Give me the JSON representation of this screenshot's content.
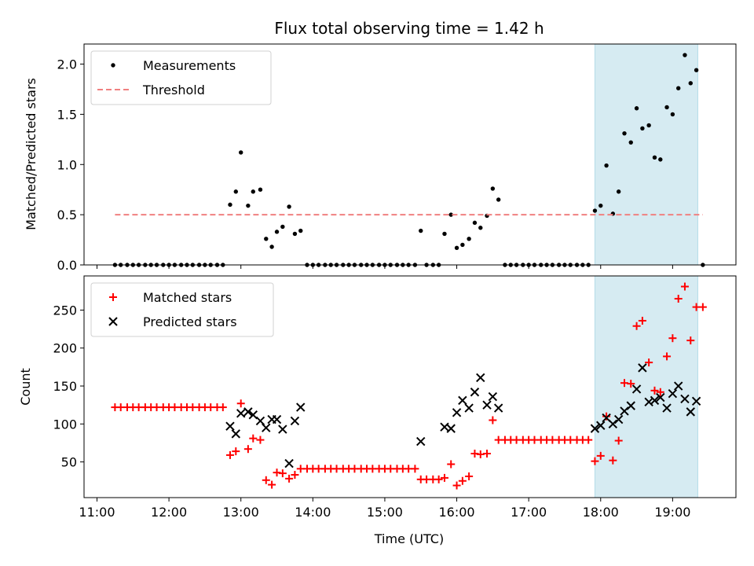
{
  "chart_data": [
    {
      "type": "scatter",
      "title": "Flux total observing time = 1.42 h",
      "xlabel": "",
      "ylabel": "Matched/Predicted stars",
      "xlim": [
        10.82,
        19.88
      ],
      "ylim": [
        0.0,
        2.2
      ],
      "yticks": [
        {
          "v": 0.0,
          "label": "0.0"
        },
        {
          "v": 0.5,
          "label": "0.5"
        },
        {
          "v": 1.0,
          "label": "1.0"
        },
        {
          "v": 1.5,
          "label": "1.5"
        },
        {
          "v": 2.0,
          "label": "2.0"
        }
      ],
      "xticks": [
        11,
        12,
        13,
        14,
        15,
        16,
        17,
        18,
        19
      ],
      "highlight_span": {
        "x0": 17.92,
        "x1": 19.35,
        "color": "#add8e6"
      },
      "legend": {
        "position": "upper-left",
        "entries": [
          "Measurements",
          "Threshold"
        ]
      },
      "series": [
        {
          "name": "Measurements",
          "marker": "dot",
          "color": "#000000",
          "points": [
            [
              11.25,
              0
            ],
            [
              11.33,
              0
            ],
            [
              11.42,
              0
            ],
            [
              11.5,
              0
            ],
            [
              11.58,
              0
            ],
            [
              11.67,
              0
            ],
            [
              11.75,
              0
            ],
            [
              11.83,
              0
            ],
            [
              11.92,
              0
            ],
            [
              12.0,
              0
            ],
            [
              12.08,
              0
            ],
            [
              12.17,
              0
            ],
            [
              12.25,
              0
            ],
            [
              12.33,
              0
            ],
            [
              12.42,
              0
            ],
            [
              12.5,
              0
            ],
            [
              12.58,
              0
            ],
            [
              12.67,
              0
            ],
            [
              12.75,
              0
            ],
            [
              12.85,
              0.6
            ],
            [
              12.93,
              0.73
            ],
            [
              13.0,
              1.12
            ],
            [
              13.1,
              0.59
            ],
            [
              13.17,
              0.73
            ],
            [
              13.27,
              0.75
            ],
            [
              13.35,
              0.26
            ],
            [
              13.43,
              0.18
            ],
            [
              13.5,
              0.33
            ],
            [
              13.58,
              0.38
            ],
            [
              13.67,
              0.58
            ],
            [
              13.75,
              0.31
            ],
            [
              13.83,
              0.34
            ],
            [
              13.92,
              0
            ],
            [
              14.0,
              0
            ],
            [
              14.08,
              0
            ],
            [
              14.17,
              0
            ],
            [
              14.25,
              0
            ],
            [
              14.33,
              0
            ],
            [
              14.42,
              0
            ],
            [
              14.5,
              0
            ],
            [
              14.58,
              0
            ],
            [
              14.67,
              0
            ],
            [
              14.75,
              0
            ],
            [
              14.83,
              0
            ],
            [
              14.92,
              0
            ],
            [
              15.0,
              0
            ],
            [
              15.08,
              0
            ],
            [
              15.17,
              0
            ],
            [
              15.25,
              0
            ],
            [
              15.33,
              0
            ],
            [
              15.42,
              0
            ],
            [
              15.5,
              0.34
            ],
            [
              15.58,
              0
            ],
            [
              15.67,
              0
            ],
            [
              15.75,
              0
            ],
            [
              15.83,
              0.31
            ],
            [
              15.92,
              0.5
            ],
            [
              16.0,
              0.17
            ],
            [
              16.08,
              0.2
            ],
            [
              16.17,
              0.26
            ],
            [
              16.25,
              0.42
            ],
            [
              16.33,
              0.37
            ],
            [
              16.42,
              0.49
            ],
            [
              16.5,
              0.76
            ],
            [
              16.58,
              0.65
            ],
            [
              16.67,
              0
            ],
            [
              16.75,
              0
            ],
            [
              16.83,
              0
            ],
            [
              16.92,
              0
            ],
            [
              17.0,
              0
            ],
            [
              17.08,
              0
            ],
            [
              17.17,
              0
            ],
            [
              17.25,
              0
            ],
            [
              17.33,
              0
            ],
            [
              17.42,
              0
            ],
            [
              17.5,
              0
            ],
            [
              17.58,
              0
            ],
            [
              17.67,
              0
            ],
            [
              17.75,
              0
            ],
            [
              17.83,
              0
            ],
            [
              17.92,
              0.54
            ],
            [
              18.0,
              0.59
            ],
            [
              18.08,
              0.99
            ],
            [
              18.17,
              0.51
            ],
            [
              18.25,
              0.73
            ],
            [
              18.33,
              1.31
            ],
            [
              18.42,
              1.22
            ],
            [
              18.5,
              1.56
            ],
            [
              18.58,
              1.36
            ],
            [
              18.67,
              1.39
            ],
            [
              18.75,
              1.07
            ],
            [
              18.83,
              1.05
            ],
            [
              18.92,
              1.57
            ],
            [
              19.0,
              1.5
            ],
            [
              19.08,
              1.76
            ],
            [
              19.17,
              2.09
            ],
            [
              19.25,
              1.81
            ],
            [
              19.33,
              1.94
            ],
            [
              19.42,
              0
            ]
          ]
        },
        {
          "name": "Threshold",
          "marker": "dashed-line",
          "color": "#f08080",
          "points": [
            [
              11.25,
              0.5
            ],
            [
              19.42,
              0.5
            ]
          ]
        }
      ]
    },
    {
      "type": "scatter",
      "title": "",
      "xlabel": "Time (UTC)",
      "ylabel": "Count",
      "xlim": [
        10.82,
        19.88
      ],
      "ylim": [
        3,
        295
      ],
      "yticks": [
        {
          "v": 50,
          "label": "50"
        },
        {
          "v": 100,
          "label": "100"
        },
        {
          "v": 150,
          "label": "150"
        },
        {
          "v": 200,
          "label": "200"
        },
        {
          "v": 250,
          "label": "250"
        }
      ],
      "xticks": [
        {
          "v": 11,
          "label": "11:00"
        },
        {
          "v": 12,
          "label": "12:00"
        },
        {
          "v": 13,
          "label": "13:00"
        },
        {
          "v": 14,
          "label": "14:00"
        },
        {
          "v": 15,
          "label": "15:00"
        },
        {
          "v": 16,
          "label": "16:00"
        },
        {
          "v": 17,
          "label": "17:00"
        },
        {
          "v": 18,
          "label": "18:00"
        },
        {
          "v": 19,
          "label": "19:00"
        }
      ],
      "highlight_span": {
        "x0": 17.92,
        "x1": 19.35,
        "color": "#add8e6"
      },
      "legend": {
        "position": "upper-left",
        "entries": [
          "Matched stars",
          "Predicted stars"
        ]
      },
      "series": [
        {
          "name": "Matched stars",
          "marker": "plus",
          "color": "#ff0000",
          "points": [
            [
              11.25,
              122
            ],
            [
              11.33,
              122
            ],
            [
              11.42,
              122
            ],
            [
              11.5,
              122
            ],
            [
              11.58,
              122
            ],
            [
              11.67,
              122
            ],
            [
              11.75,
              122
            ],
            [
              11.83,
              122
            ],
            [
              11.92,
              122
            ],
            [
              12.0,
              122
            ],
            [
              12.08,
              122
            ],
            [
              12.17,
              122
            ],
            [
              12.25,
              122
            ],
            [
              12.33,
              122
            ],
            [
              12.42,
              122
            ],
            [
              12.5,
              122
            ],
            [
              12.58,
              122
            ],
            [
              12.67,
              122
            ],
            [
              12.75,
              122
            ],
            [
              12.85,
              59
            ],
            [
              12.93,
              64
            ],
            [
              13.0,
              127
            ],
            [
              13.1,
              67
            ],
            [
              13.17,
              81
            ],
            [
              13.27,
              79
            ],
            [
              13.35,
              26
            ],
            [
              13.43,
              20
            ],
            [
              13.5,
              36
            ],
            [
              13.58,
              35
            ],
            [
              13.67,
              28
            ],
            [
              13.75,
              33
            ],
            [
              13.83,
              41
            ],
            [
              13.92,
              41
            ],
            [
              14.0,
              41
            ],
            [
              14.08,
              41
            ],
            [
              14.17,
              41
            ],
            [
              14.25,
              41
            ],
            [
              14.33,
              41
            ],
            [
              14.42,
              41
            ],
            [
              14.5,
              41
            ],
            [
              14.58,
              41
            ],
            [
              14.67,
              41
            ],
            [
              14.75,
              41
            ],
            [
              14.83,
              41
            ],
            [
              14.92,
              41
            ],
            [
              15.0,
              41
            ],
            [
              15.08,
              41
            ],
            [
              15.17,
              41
            ],
            [
              15.25,
              41
            ],
            [
              15.33,
              41
            ],
            [
              15.42,
              41
            ],
            [
              15.5,
              27
            ],
            [
              15.58,
              27
            ],
            [
              15.67,
              27
            ],
            [
              15.75,
              27
            ],
            [
              15.83,
              29
            ],
            [
              15.92,
              47
            ],
            [
              16.0,
              19
            ],
            [
              16.08,
              25
            ],
            [
              16.17,
              31
            ],
            [
              16.25,
              61
            ],
            [
              16.33,
              60
            ],
            [
              16.42,
              61
            ],
            [
              16.5,
              105
            ],
            [
              16.58,
              79
            ],
            [
              16.67,
              79
            ],
            [
              16.75,
              79
            ],
            [
              16.83,
              79
            ],
            [
              16.92,
              79
            ],
            [
              17.0,
              79
            ],
            [
              17.08,
              79
            ],
            [
              17.17,
              79
            ],
            [
              17.25,
              79
            ],
            [
              17.33,
              79
            ],
            [
              17.42,
              79
            ],
            [
              17.5,
              79
            ],
            [
              17.58,
              79
            ],
            [
              17.67,
              79
            ],
            [
              17.75,
              79
            ],
            [
              17.83,
              79
            ],
            [
              17.92,
              51
            ],
            [
              18.0,
              58
            ],
            [
              18.08,
              110
            ],
            [
              18.17,
              52
            ],
            [
              18.25,
              78
            ],
            [
              18.33,
              154
            ],
            [
              18.42,
              153
            ],
            [
              18.5,
              229
            ],
            [
              18.58,
              236
            ],
            [
              18.67,
              181
            ],
            [
              18.75,
              144
            ],
            [
              18.83,
              142
            ],
            [
              18.92,
              189
            ],
            [
              19.0,
              213
            ],
            [
              19.08,
              265
            ],
            [
              19.17,
              281
            ],
            [
              19.25,
              210
            ],
            [
              19.33,
              254
            ],
            [
              19.42,
              254
            ]
          ]
        },
        {
          "name": "Predicted stars",
          "marker": "x",
          "color": "#000000",
          "points": [
            [
              12.85,
              97
            ],
            [
              12.93,
              87
            ],
            [
              13.0,
              114
            ],
            [
              13.1,
              116
            ],
            [
              13.17,
              112
            ],
            [
              13.27,
              104
            ],
            [
              13.35,
              95
            ],
            [
              13.43,
              106
            ],
            [
              13.5,
              106
            ],
            [
              13.58,
              93
            ],
            [
              13.67,
              48
            ],
            [
              13.75,
              104
            ],
            [
              13.83,
              122
            ],
            [
              15.5,
              77
            ],
            [
              15.83,
              96
            ],
            [
              15.92,
              94
            ],
            [
              16.0,
              115
            ],
            [
              16.08,
              131
            ],
            [
              16.17,
              121
            ],
            [
              16.25,
              142
            ],
            [
              16.33,
              161
            ],
            [
              16.42,
              125
            ],
            [
              16.5,
              136
            ],
            [
              16.58,
              121
            ],
            [
              17.92,
              94
            ],
            [
              18.0,
              98
            ],
            [
              18.08,
              108
            ],
            [
              18.17,
              100
            ],
            [
              18.25,
              106
            ],
            [
              18.33,
              117
            ],
            [
              18.42,
              124
            ],
            [
              18.5,
              146
            ],
            [
              18.58,
              174
            ],
            [
              18.67,
              129
            ],
            [
              18.75,
              131
            ],
            [
              18.83,
              135
            ],
            [
              18.92,
              121
            ],
            [
              19.0,
              140
            ],
            [
              19.08,
              150
            ],
            [
              19.17,
              133
            ],
            [
              19.25,
              116
            ],
            [
              19.33,
              130
            ]
          ]
        }
      ]
    }
  ]
}
